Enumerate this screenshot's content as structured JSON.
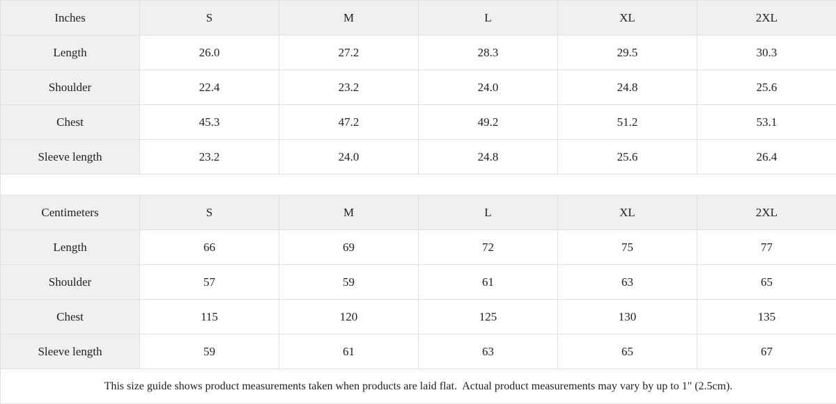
{
  "colors": {
    "header_background": "#f0f0f0",
    "border": "#e1e1e1",
    "text": "#212121",
    "cell_background": "#ffffff"
  },
  "tables": [
    {
      "unit_label": "Inches",
      "sizes": [
        "S",
        "M",
        "L",
        "XL",
        "2XL"
      ],
      "rows": [
        {
          "label": "Length",
          "values": [
            "26.0",
            "27.2",
            "28.3",
            "29.5",
            "30.3"
          ]
        },
        {
          "label": "Shoulder",
          "values": [
            "22.4",
            "23.2",
            "24.0",
            "24.8",
            "25.6"
          ]
        },
        {
          "label": "Chest",
          "values": [
            "45.3",
            "47.2",
            "49.2",
            "51.2",
            "53.1"
          ]
        },
        {
          "label": "Sleeve length",
          "values": [
            "23.2",
            "24.0",
            "24.8",
            "25.6",
            "26.4"
          ]
        }
      ]
    },
    {
      "unit_label": "Centimeters",
      "sizes": [
        "S",
        "M",
        "L",
        "XL",
        "2XL"
      ],
      "rows": [
        {
          "label": "Length",
          "values": [
            "66",
            "69",
            "72",
            "75",
            "77"
          ]
        },
        {
          "label": "Shoulder",
          "values": [
            "57",
            "59",
            "61",
            "63",
            "65"
          ]
        },
        {
          "label": "Chest",
          "values": [
            "115",
            "120",
            "125",
            "130",
            "135"
          ]
        },
        {
          "label": "Sleeve length",
          "values": [
            "59",
            "61",
            "63",
            "65",
            "67"
          ]
        }
      ]
    }
  ],
  "footer_note": "This size guide shows product measurements taken when products are laid flat.  Actual product measurements may vary by up to 1\" (2.5cm)."
}
